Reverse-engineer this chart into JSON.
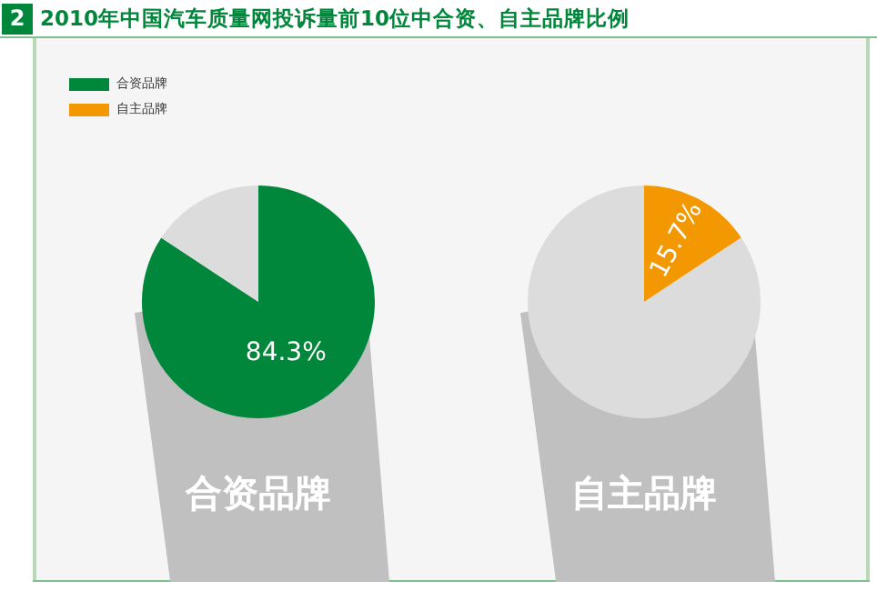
{
  "chart_data": [
    {
      "type": "pie",
      "title": "2010年中国汽车质量网投诉量前10位中合资、自主品牌比例",
      "annotations": [
        "2"
      ],
      "xlabel": "合资品牌",
      "categories": [
        "合资品牌",
        null
      ],
      "values": [
        84.3,
        15.7
      ],
      "colors": [
        "#00873c",
        "#dcdcdc"
      ],
      "value_labels": [
        "84.3%",
        null
      ],
      "legend": "top left"
    },
    {
      "type": "pie",
      "xlabel": "自主品牌",
      "categories": [
        "自主品牌",
        null
      ],
      "values": [
        15.7,
        84.3
      ],
      "colors": [
        "#f39800",
        "#dcdcdc"
      ],
      "value_labels": [
        "15.7%",
        null
      ],
      "legend": "top left"
    }
  ]
}
